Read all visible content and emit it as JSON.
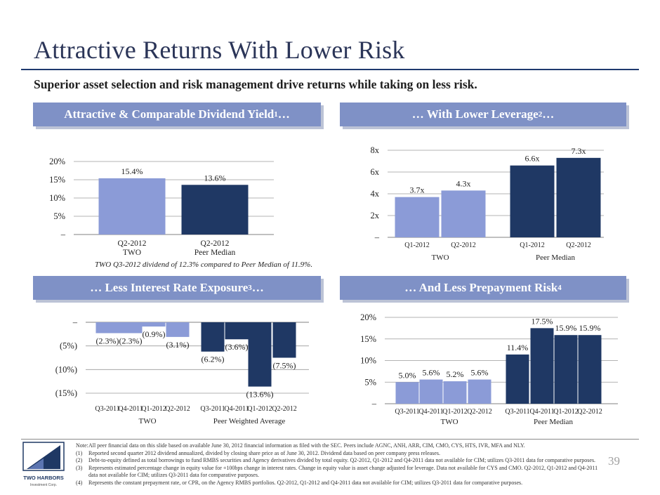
{
  "title": "Attractive Returns With Lower Risk",
  "subtitle": "Superior asset selection and risk management drive returns while taking on less risk.",
  "panels": {
    "yield": {
      "title": "Attractive & Comparable Dividend Yield",
      "sup": "1",
      "suffix": "…"
    },
    "leverage": {
      "title": "… With Lower Leverage",
      "sup": "2",
      "suffix": "…"
    },
    "rate": {
      "title": "… Less Interest Rate Exposure",
      "sup": "3",
      "suffix": "…"
    },
    "prepay": {
      "title": "… And Less Prepayment Risk",
      "sup": "4",
      "suffix": ""
    }
  },
  "dividend_note": "TWO Q3-2012 dividend of 12.3% compared to Peer Median of 11.9%.",
  "page_number": "39",
  "logo": {
    "name": "TWO HARBORS",
    "tagline": "Investment Corp."
  },
  "colors": {
    "light": "#8b9bd7",
    "dark": "#1f3864",
    "banner": "#7f91c6"
  },
  "footnotes": [
    {
      "num": "Note:",
      "text": "All peer financial data on this slide based on available June 30, 2012 financial information as filed with the SEC.  Peers include AGNC, ANH, ARR, CIM, CMO, CYS, HTS, IVR, MFA and NLY."
    },
    {
      "num": "(1)",
      "text": "Reported second quarter 2012 dividend annualized, divided by closing share price as of June 30, 2012. Dividend data based on peer company press releases."
    },
    {
      "num": "(2)",
      "text": "Debt-to-equity defined as total borrowings to fund RMBS securities and Agency derivatives divided by total equity. Q2-2012, Q1-2012 and Q4-2011 data not available for CIM; utilizes Q3-2011 data for comparative purposes."
    },
    {
      "num": "(3)",
      "text": "Represents estimated percentage change in equity value for +100bps change in interest rates. Change in equity value is asset change adjusted for leverage.  Data not available for CYS and CMO.  Q2-2012, Q1-2012 and Q4-2011 data not available for CIM; utilizes Q3-2011 data for comparative purposes."
    },
    {
      "num": "(4)",
      "text": "Represents the constant prepayment rate, or CPR, on the Agency RMBS portfolios. Q2-2012, Q1-2012 and Q4-2011 data not available for CIM; utilizes Q3-2011 data for comparative purposes."
    }
  ],
  "chart_data": [
    {
      "id": "dividend-yield",
      "type": "bar",
      "categories": [
        "Q2-2012\nTWO",
        "Q2-2012\nPeer Median"
      ],
      "values": [
        15.4,
        13.6
      ],
      "labels": [
        "15.4%",
        "13.6%"
      ],
      "colors": [
        "light",
        "dark"
      ],
      "yticks": [
        0,
        5,
        10,
        15,
        20
      ],
      "ytick_labels": [
        "–",
        "5%",
        "10%",
        "15%",
        "20%"
      ],
      "ylim": [
        0,
        20
      ],
      "grid": true
    },
    {
      "id": "leverage",
      "type": "bar",
      "categories": [
        "Q1-2012",
        "Q2-2012",
        "Q1-2012",
        "Q2-2012"
      ],
      "groups": [
        "TWO",
        "Peer Median"
      ],
      "values": [
        3.7,
        4.3,
        6.6,
        7.3
      ],
      "labels": [
        "3.7x",
        "4.3x",
        "6.6x",
        "7.3x"
      ],
      "colors": [
        "light",
        "light",
        "dark",
        "dark"
      ],
      "yticks": [
        0,
        2,
        4,
        6,
        8
      ],
      "ytick_labels": [
        "–",
        "2x",
        "4x",
        "6x",
        "8x"
      ],
      "ylim": [
        0,
        8
      ],
      "grid": true
    },
    {
      "id": "rate-exposure",
      "type": "bar",
      "categories": [
        "Q3-2011",
        "Q4-2011",
        "Q1-2012",
        "Q2-2012",
        "Q3-2011",
        "Q4-2011",
        "Q1-2012",
        "Q2-2012"
      ],
      "groups": [
        "TWO",
        "Peer Weighted Average"
      ],
      "values": [
        -2.3,
        -2.3,
        -0.9,
        -3.1,
        -6.2,
        -3.6,
        -13.6,
        -7.5
      ],
      "labels": [
        "(2.3%)",
        "(2.3%)",
        "(0.9%)",
        "(3.1%)",
        "(6.2%)",
        "(3.6%)",
        "(13.6%)",
        "(7.5%)"
      ],
      "colors": [
        "light",
        "light",
        "light",
        "light",
        "dark",
        "dark",
        "dark",
        "dark"
      ],
      "yticks": [
        0,
        -5,
        -10,
        -15
      ],
      "ytick_labels": [
        "–",
        "(5%)",
        "(10%)",
        "(15%)"
      ],
      "ylim": [
        -15,
        0
      ],
      "grid": true
    },
    {
      "id": "prepayment",
      "type": "bar",
      "categories": [
        "Q3-2011",
        "Q4-2011",
        "Q1-2012",
        "Q2-2012",
        "Q3-2011",
        "Q4-2011",
        "Q1-2012",
        "Q2-2012"
      ],
      "groups": [
        "TWO",
        "Peer Median"
      ],
      "values": [
        5.0,
        5.6,
        5.2,
        5.6,
        11.4,
        17.5,
        15.9,
        15.9
      ],
      "labels": [
        "5.0%",
        "5.6%",
        "5.2%",
        "5.6%",
        "11.4%",
        "17.5%",
        "15.9%",
        "15.9%"
      ],
      "colors": [
        "light",
        "light",
        "light",
        "light",
        "dark",
        "dark",
        "dark",
        "dark"
      ],
      "yticks": [
        0,
        5,
        10,
        15,
        20
      ],
      "ytick_labels": [
        "–",
        "5%",
        "10%",
        "15%",
        "20%"
      ],
      "ylim": [
        0,
        20
      ],
      "grid": true
    }
  ]
}
